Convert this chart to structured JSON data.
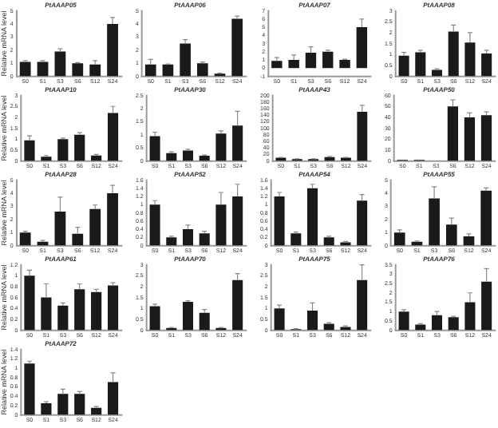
{
  "chart_data": [
    {
      "type": "bar",
      "title": "PtAAAP05",
      "ylabel": "Relative mRNA level",
      "categories": [
        "S0",
        "S1",
        "S3",
        "S6",
        "S12",
        "S24"
      ],
      "values": [
        1.1,
        1.1,
        1.9,
        1.0,
        0.9,
        4.0
      ],
      "errors": [
        0.1,
        0.1,
        0.2,
        0.05,
        0.3,
        0.5
      ],
      "color": "#1a1a1a",
      "ylim": [
        0,
        5
      ],
      "yticks": [
        0,
        1,
        2,
        3,
        4,
        5
      ],
      "grid": false
    },
    {
      "type": "bar",
      "title": "PtAAAP06",
      "categories": [
        "S0",
        "S1",
        "S3",
        "S6",
        "S12",
        "S24"
      ],
      "values": [
        0.9,
        0.9,
        2.5,
        1.0,
        0.2,
        4.4
      ],
      "errors": [
        0.4,
        0.05,
        0.3,
        0.1,
        0.05,
        0.2
      ],
      "color": "#1a1a1a",
      "ylim": [
        0,
        5
      ],
      "yticks": [
        0,
        1,
        2,
        3,
        4,
        5
      ],
      "grid": false
    },
    {
      "type": "bar",
      "title": "PtAAAP07",
      "categories": [
        "S0",
        "S1",
        "S3",
        "S6",
        "S12",
        "S24"
      ],
      "values": [
        0.9,
        1.0,
        1.9,
        2.0,
        1.0,
        5.0
      ],
      "errors": [
        0.4,
        0.6,
        0.7,
        0.2,
        0.1,
        1.0
      ],
      "color": "#1a1a1a",
      "ylim": [
        -1,
        7
      ],
      "yticks": [
        -1,
        0,
        1,
        2,
        3,
        4,
        5,
        6,
        7
      ],
      "grid": false
    },
    {
      "type": "bar",
      "title": "PtAAAP08",
      "categories": [
        "S0",
        "S1",
        "S3",
        "S6",
        "S12",
        "S24"
      ],
      "values": [
        0.95,
        1.1,
        0.3,
        2.05,
        1.55,
        1.05
      ],
      "errors": [
        0.15,
        0.1,
        0.05,
        0.3,
        0.45,
        0.15
      ],
      "color": "#1a1a1a",
      "ylim": [
        0,
        3
      ],
      "yticks": [
        0,
        0.5,
        1,
        1.5,
        2,
        2.5,
        3
      ],
      "grid": false
    },
    {
      "type": "bar",
      "title": "PtAAAP10",
      "ylabel": "Relative mRNA level",
      "categories": [
        "S0",
        "S1",
        "S3",
        "S6",
        "S12",
        "S24"
      ],
      "values": [
        0.95,
        0.2,
        1.0,
        1.2,
        0.25,
        2.2
      ],
      "errors": [
        0.2,
        0.05,
        0.05,
        0.1,
        0.05,
        0.3
      ],
      "color": "#1a1a1a",
      "ylim": [
        0,
        3
      ],
      "yticks": [
        0,
        0.5,
        1,
        1.5,
        2,
        2.5,
        3
      ],
      "grid": false
    },
    {
      "type": "bar",
      "title": "PtAAAP30",
      "categories": [
        "S0",
        "S1",
        "S3",
        "S6",
        "S12",
        "S24"
      ],
      "values": [
        0.95,
        0.3,
        0.4,
        0.2,
        1.05,
        1.35
      ],
      "errors": [
        0.15,
        0.05,
        0.05,
        0.03,
        0.1,
        0.55
      ],
      "color": "#1a1a1a",
      "ylim": [
        0,
        2.5
      ],
      "yticks": [
        0,
        0.5,
        1,
        1.5,
        2,
        2.5
      ],
      "grid": false
    },
    {
      "type": "bar",
      "title": "PtAAAP43",
      "categories": [
        "S0",
        "S1",
        "S3",
        "S6",
        "S12",
        "S24"
      ],
      "values": [
        10,
        6,
        6,
        12,
        10,
        150
      ],
      "errors": [
        1,
        1,
        1,
        2,
        1,
        20
      ],
      "color": "#1a1a1a",
      "ylim": [
        0,
        200
      ],
      "yticks": [
        0,
        20,
        40,
        60,
        80,
        100,
        120,
        140,
        160,
        180,
        200
      ],
      "grid": false
    },
    {
      "type": "bar",
      "title": "PtAAAP50",
      "categories": [
        "S0",
        "S1",
        "S3",
        "S6",
        "S12",
        "S24"
      ],
      "values": [
        1,
        1,
        0,
        50,
        40,
        42
      ],
      "errors": [
        null,
        null,
        null,
        6,
        4,
        3
      ],
      "color": "#1a1a1a",
      "ylim": [
        0,
        60
      ],
      "yticks": [
        0,
        10,
        20,
        30,
        40,
        50,
        60
      ],
      "grid": false
    },
    {
      "type": "bar",
      "title": "PtAAAP28",
      "ylabel": "Relative mRNA level",
      "categories": [
        "S0",
        "S1",
        "S3",
        "S6",
        "S12",
        "S24"
      ],
      "values": [
        1.0,
        0.3,
        2.6,
        0.9,
        2.8,
        4.0
      ],
      "errors": [
        0.1,
        0.1,
        1.1,
        0.5,
        0.3,
        0.6
      ],
      "color": "#1a1a1a",
      "ylim": [
        0,
        5
      ],
      "yticks": [
        0,
        1,
        2,
        3,
        4,
        5
      ],
      "grid": false
    },
    {
      "type": "bar",
      "title": "PtAAAP52",
      "categories": [
        "S0",
        "S1",
        "S3",
        "S6",
        "S12",
        "S24"
      ],
      "values": [
        1.0,
        0.2,
        0.4,
        0.3,
        1.0,
        1.2
      ],
      "errors": [
        0.1,
        0.03,
        0.1,
        0.05,
        0.3,
        0.3
      ],
      "color": "#1a1a1a",
      "ylim": [
        0,
        1.6
      ],
      "yticks": [
        0,
        0.2,
        0.4,
        0.6,
        0.8,
        1,
        1.2,
        1.4,
        1.6
      ],
      "grid": false
    },
    {
      "type": "bar",
      "title": "PtAAAP54",
      "categories": [
        "S0",
        "S1",
        "S3",
        "S6",
        "S12",
        "S24"
      ],
      "values": [
        1.2,
        0.3,
        1.4,
        0.2,
        0.08,
        1.1
      ],
      "errors": [
        0.1,
        0.03,
        0.1,
        0.03,
        0.02,
        0.15
      ],
      "color": "#1a1a1a",
      "ylim": [
        0,
        1.6
      ],
      "yticks": [
        0,
        0.2,
        0.4,
        0.6,
        0.8,
        1,
        1.2,
        1.4,
        1.6
      ],
      "grid": false
    },
    {
      "type": "bar",
      "title": "PtAAAP55",
      "categories": [
        "S0",
        "S1",
        "S3",
        "S6",
        "S12",
        "S24"
      ],
      "values": [
        1.0,
        0.3,
        3.6,
        1.6,
        0.7,
        4.2
      ],
      "errors": [
        0.2,
        0.05,
        0.9,
        0.5,
        0.2,
        0.2
      ],
      "color": "#1a1a1a",
      "ylim": [
        0,
        5
      ],
      "yticks": [
        0,
        1,
        2,
        3,
        4,
        5
      ],
      "grid": false
    },
    {
      "type": "bar",
      "title": "PtAAAP61",
      "ylabel": "Relative mRNA level",
      "categories": [
        "S0",
        "S1",
        "S3",
        "S6",
        "S12",
        "S24"
      ],
      "values": [
        1.0,
        0.6,
        0.45,
        0.75,
        0.7,
        0.82
      ],
      "errors": [
        0.1,
        0.25,
        0.05,
        0.1,
        0.05,
        0.05
      ],
      "color": "#1a1a1a",
      "ylim": [
        0,
        1.2
      ],
      "yticks": [
        0,
        0.2,
        0.4,
        0.6,
        0.8,
        1,
        1.2
      ],
      "grid": false
    },
    {
      "type": "bar",
      "title": "PtAAAP70",
      "categories": [
        "S0",
        "S1",
        "S3",
        "S6",
        "S12",
        "S24"
      ],
      "values": [
        1.1,
        0.1,
        1.3,
        0.8,
        0.1,
        2.3
      ],
      "errors": [
        0.1,
        0.03,
        0.05,
        0.15,
        0.03,
        0.3
      ],
      "color": "#1a1a1a",
      "ylim": [
        0,
        3
      ],
      "yticks": [
        0,
        0.5,
        1,
        1.5,
        2,
        2.5,
        3
      ],
      "grid": false
    },
    {
      "type": "bar",
      "title": "PtAAAP75",
      "categories": [
        "S0",
        "S1",
        "S3",
        "S6",
        "S12",
        "S24"
      ],
      "values": [
        1.0,
        0.05,
        0.9,
        0.3,
        0.15,
        2.3
      ],
      "errors": [
        0.15,
        0.02,
        0.35,
        0.05,
        0.05,
        0.7
      ],
      "color": "#1a1a1a",
      "ylim": [
        0,
        3
      ],
      "yticks": [
        0,
        0.5,
        1,
        1.5,
        2,
        2.5,
        3
      ],
      "grid": false
    },
    {
      "type": "bar",
      "title": "PtAAAP76",
      "categories": [
        "S0",
        "S1",
        "S3",
        "S6",
        "S12",
        "S24"
      ],
      "values": [
        1.0,
        0.3,
        0.8,
        0.7,
        1.5,
        2.6
      ],
      "errors": [
        0.1,
        0.05,
        0.2,
        0.05,
        0.5,
        0.7
      ],
      "color": "#1a1a1a",
      "ylim": [
        0,
        3.5
      ],
      "yticks": [
        0,
        0.5,
        1,
        1.5,
        2,
        2.5,
        3,
        3.5
      ],
      "grid": false
    },
    {
      "type": "bar",
      "title": "PtAAAP72",
      "ylabel": "Relative mRNA level",
      "categories": [
        "S0",
        "S1",
        "S3",
        "S6",
        "S12",
        "S24"
      ],
      "values": [
        1.1,
        0.25,
        0.45,
        0.45,
        0.15,
        0.7
      ],
      "errors": [
        0.05,
        0.03,
        0.1,
        0.05,
        0.03,
        0.2
      ],
      "color": "#1a1a1a",
      "ylim": [
        0,
        1.4
      ],
      "yticks": [
        0,
        0.2,
        0.4,
        0.6,
        0.8,
        1,
        1.2,
        1.4
      ],
      "grid": false
    }
  ]
}
